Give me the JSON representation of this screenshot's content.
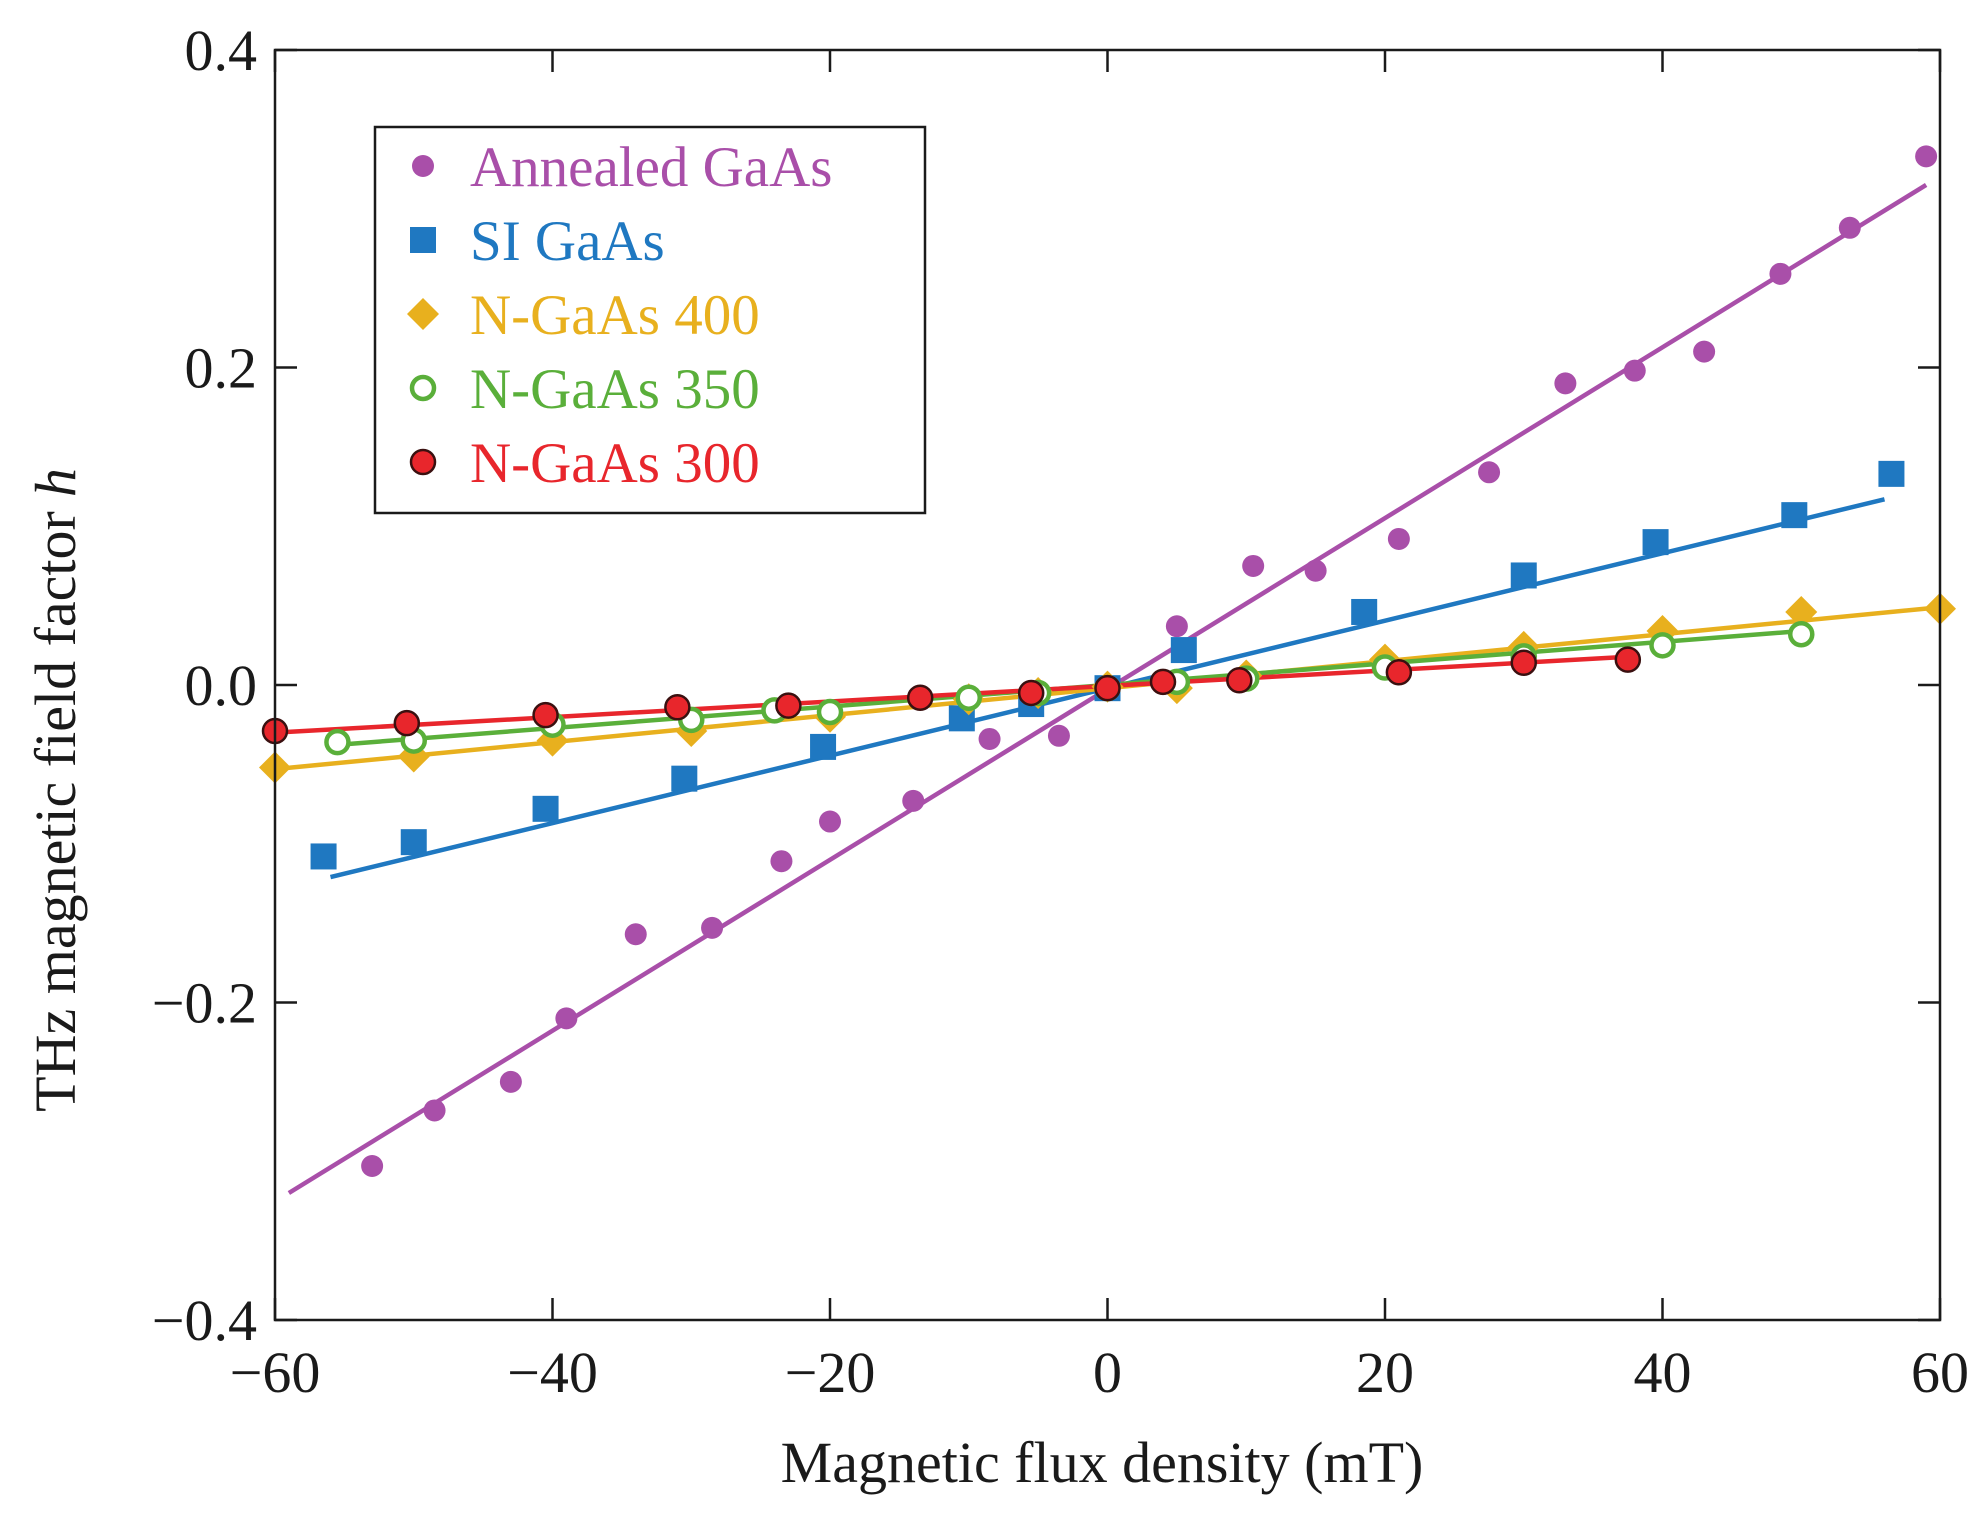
{
  "chart_data": {
    "type": "scatter",
    "title": "",
    "xlabel": "Magnetic flux density (mT)",
    "ylabel": "THz magnetic field factor",
    "ylabel_symbol": "h",
    "xlim": [
      -60,
      60
    ],
    "ylim": [
      -0.4,
      0.4
    ],
    "xticks": [
      -60,
      -40,
      -20,
      0,
      20,
      40,
      60
    ],
    "xtick_labels": [
      "−60",
      "−40",
      "−20",
      "0",
      "20",
      "40",
      "60"
    ],
    "yticks": [
      -0.4,
      -0.2,
      0.0,
      0.2,
      0.4
    ],
    "ytick_labels": [
      "−0.4",
      "−0.2",
      "0.0",
      "0.2",
      "0.4"
    ],
    "grid": false,
    "legend_position": "top-left",
    "series": [
      {
        "name": "Annealed GaAs",
        "color": "#a94fa9",
        "marker": "circle",
        "x": [
          -53,
          -48.5,
          -43,
          -39,
          -34,
          -28.5,
          -23.5,
          -20,
          -14,
          -8.5,
          -3.5,
          5,
          10.5,
          15,
          21,
          27.5,
          33,
          38,
          43,
          48.5,
          53.5,
          59
        ],
        "y": [
          -0.303,
          -0.268,
          -0.25,
          -0.21,
          -0.157,
          -0.153,
          -0.111,
          -0.086,
          -0.073,
          -0.034,
          -0.032,
          0.037,
          0.075,
          0.072,
          0.092,
          0.134,
          0.19,
          0.198,
          0.21,
          0.259,
          0.288,
          0.333
        ],
        "fit": [
          [
            -59,
            -0.32
          ],
          [
            59,
            0.315
          ]
        ]
      },
      {
        "name": "SI GaAs",
        "color": "#1f78c1",
        "marker": "square",
        "x": [
          -56.5,
          -50,
          -40.5,
          -30.5,
          -20.5,
          -10.5,
          -5.5,
          0,
          5.5,
          18.5,
          30,
          39.5,
          49.5,
          56.5
        ],
        "y": [
          -0.108,
          -0.099,
          -0.078,
          -0.059,
          -0.039,
          -0.021,
          -0.012,
          -0.002,
          0.022,
          0.046,
          0.069,
          0.09,
          0.107,
          0.133
        ],
        "fit": [
          [
            -56,
            -0.121
          ],
          [
            56,
            0.117
          ]
        ]
      },
      {
        "name": "N-GaAs 400",
        "color": "#e8b01e",
        "marker": "diamond",
        "x": [
          -60,
          -50,
          -40,
          -30,
          -20,
          -10,
          -5,
          0,
          5,
          10,
          20,
          30,
          40,
          50,
          60
        ],
        "y": [
          -0.052,
          -0.045,
          -0.035,
          -0.029,
          -0.02,
          -0.009,
          -0.005,
          -0.001,
          -0.002,
          0.006,
          0.016,
          0.024,
          0.034,
          0.046,
          0.048
        ],
        "fit": [
          [
            -60,
            -0.053
          ],
          [
            60,
            0.049
          ]
        ]
      },
      {
        "name": "N-GaAs 350",
        "color": "#5aaf3a",
        "marker": "open-circle",
        "x": [
          -55.5,
          -50,
          -40,
          -30,
          -24,
          -20,
          -10,
          -5,
          0,
          5,
          10,
          20,
          30,
          40,
          50
        ],
        "y": [
          -0.036,
          -0.035,
          -0.025,
          -0.022,
          -0.016,
          -0.017,
          -0.008,
          -0.005,
          -0.002,
          0.002,
          0.004,
          0.011,
          0.018,
          0.025,
          0.032
        ],
        "fit": [
          [
            -56,
            -0.038
          ],
          [
            50,
            0.034
          ]
        ]
      },
      {
        "name": "N-GaAs 300",
        "color": "#e8262c",
        "marker": "filled-circle-outlined",
        "x": [
          -60,
          -50.5,
          -40.5,
          -31,
          -23,
          -13.5,
          -5.5,
          0,
          4,
          9.5,
          21,
          30,
          37.5
        ],
        "y": [
          -0.029,
          -0.024,
          -0.019,
          -0.014,
          -0.013,
          -0.008,
          -0.005,
          -0.002,
          0.002,
          0.003,
          0.008,
          0.014,
          0.016
        ],
        "fit": [
          [
            -60,
            -0.03
          ],
          [
            38,
            0.018
          ]
        ]
      }
    ]
  }
}
